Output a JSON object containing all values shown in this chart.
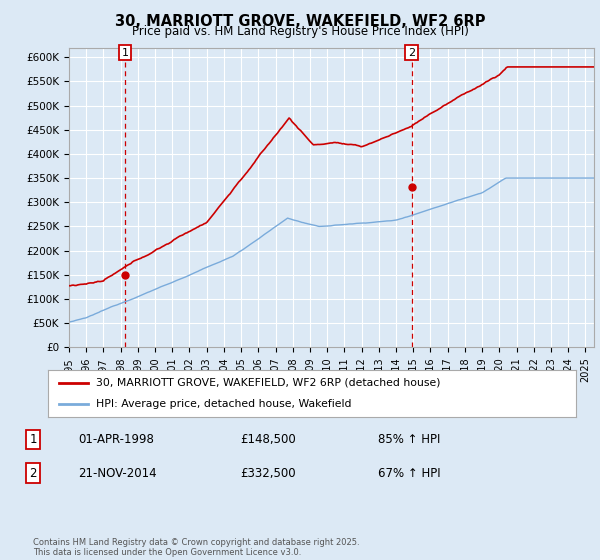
{
  "title": "30, MARRIOTT GROVE, WAKEFIELD, WF2 6RP",
  "subtitle": "Price paid vs. HM Land Registry's House Price Index (HPI)",
  "background_color": "#dce9f5",
  "plot_bg_color": "#dce9f5",
  "ylim": [
    0,
    620000
  ],
  "yticks": [
    0,
    50000,
    100000,
    150000,
    200000,
    250000,
    300000,
    350000,
    400000,
    450000,
    500000,
    550000,
    600000
  ],
  "ytick_labels": [
    "£0",
    "£50K",
    "£100K",
    "£150K",
    "£200K",
    "£250K",
    "£300K",
    "£350K",
    "£400K",
    "£450K",
    "£500K",
    "£550K",
    "£600K"
  ],
  "red_line_color": "#cc0000",
  "blue_line_color": "#7aabdb",
  "vline_color": "#cc0000",
  "annotation_box_color": "#cc0000",
  "grid_color": "#ffffff",
  "legend_label_red": "30, MARRIOTT GROVE, WAKEFIELD, WF2 6RP (detached house)",
  "legend_label_blue": "HPI: Average price, detached house, Wakefield",
  "sale1_label": "1",
  "sale1_date": "01-APR-1998",
  "sale1_price": "£148,500",
  "sale1_hpi": "85% ↑ HPI",
  "sale1_x": 1998.25,
  "sale1_y": 148500,
  "sale2_label": "2",
  "sale2_date": "21-NOV-2014",
  "sale2_price": "£332,500",
  "sale2_hpi": "67% ↑ HPI",
  "sale2_x": 2014.9,
  "sale2_y": 332500,
  "copyright_text": "Contains HM Land Registry data © Crown copyright and database right 2025.\nThis data is licensed under the Open Government Licence v3.0.",
  "xmin": 1995.0,
  "xmax": 2025.5
}
